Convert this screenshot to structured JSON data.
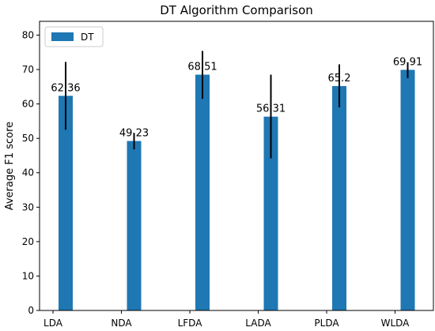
{
  "chart_data": {
    "type": "bar",
    "title": "DT Algorithm Comparison",
    "xlabel": "",
    "ylabel": "Average F1 score",
    "categories": [
      "LDA",
      "NDA",
      "LFDA",
      "LADA",
      "PLDA",
      "WLDA"
    ],
    "series": [
      {
        "name": "DT",
        "values": [
          62.36,
          49.23,
          68.51,
          56.31,
          65.2,
          69.91
        ],
        "error_low": [
          52.5,
          46.8,
          61.5,
          44.2,
          59.0,
          67.5
        ],
        "error_high": [
          72.2,
          51.6,
          75.4,
          68.5,
          71.5,
          72.1
        ],
        "color": "#1f77b4"
      }
    ],
    "data_labels": [
      "62.36",
      "49.23",
      "68.51",
      "56.31",
      "65.2",
      "69.91"
    ],
    "ylim": [
      0,
      84
    ],
    "yticks": [
      0,
      10,
      20,
      30,
      40,
      50,
      60,
      70,
      80
    ],
    "grid": false,
    "legend": {
      "position": "top-left",
      "entries": [
        "DT"
      ]
    }
  }
}
